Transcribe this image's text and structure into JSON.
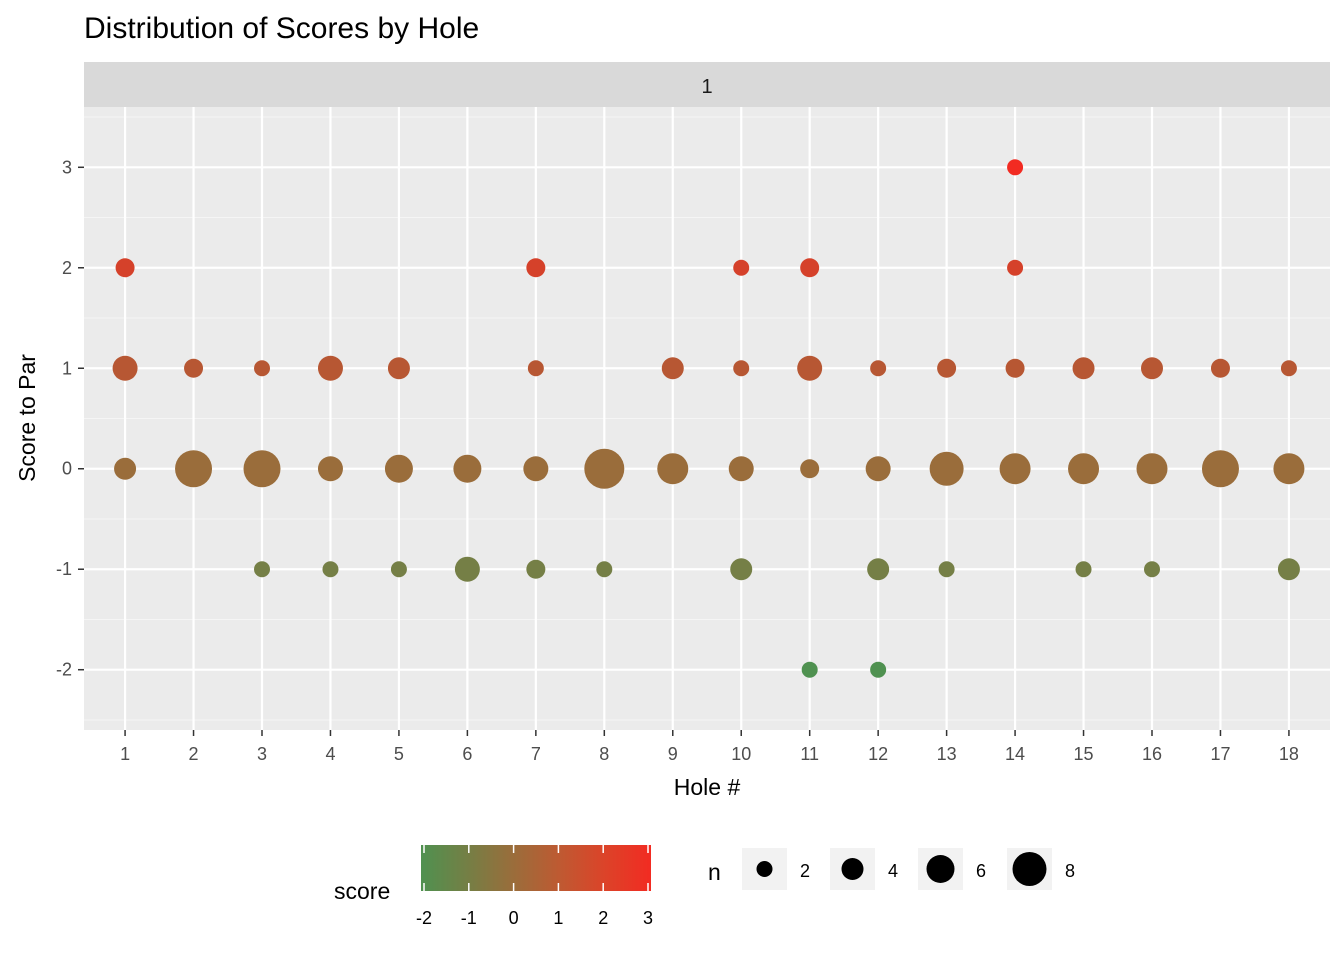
{
  "chart_data": {
    "type": "scatter",
    "title": "Distribution of Scores by Hole",
    "facet_label": "1",
    "xlabel": "Hole #",
    "ylabel": "Score to Par",
    "x_ticks": [
      1,
      2,
      3,
      4,
      5,
      6,
      7,
      8,
      9,
      10,
      11,
      12,
      13,
      14,
      15,
      16,
      17,
      18
    ],
    "y_ticks": [
      3,
      2,
      1,
      0,
      -1,
      -2
    ],
    "xlim": [
      0.4,
      18.6
    ],
    "ylim": [
      -2.6,
      3.6
    ],
    "grid": true,
    "size_variable": "n",
    "color_variable": "score",
    "color_scale": {
      "low": "#4f9150",
      "mid": "#9a6d3b",
      "high": "#f22b22",
      "min": -2,
      "max": 3
    },
    "points": [
      {
        "hole": 1,
        "score": 2,
        "n": 3
      },
      {
        "hole": 1,
        "score": 1,
        "n": 5
      },
      {
        "hole": 1,
        "score": 0,
        "n": 4
      },
      {
        "hole": 2,
        "score": 1,
        "n": 3
      },
      {
        "hole": 2,
        "score": 0,
        "n": 9
      },
      {
        "hole": 3,
        "score": 1,
        "n": 2
      },
      {
        "hole": 3,
        "score": 0,
        "n": 9
      },
      {
        "hole": 3,
        "score": -1,
        "n": 2
      },
      {
        "hole": 4,
        "score": 1,
        "n": 5
      },
      {
        "hole": 4,
        "score": 0,
        "n": 5
      },
      {
        "hole": 4,
        "score": -1,
        "n": 2
      },
      {
        "hole": 5,
        "score": 1,
        "n": 4
      },
      {
        "hole": 5,
        "score": 0,
        "n": 6
      },
      {
        "hole": 5,
        "score": -1,
        "n": 2
      },
      {
        "hole": 6,
        "score": 0,
        "n": 6
      },
      {
        "hole": 6,
        "score": -1,
        "n": 5
      },
      {
        "hole": 7,
        "score": 2,
        "n": 3
      },
      {
        "hole": 7,
        "score": 1,
        "n": 2
      },
      {
        "hole": 7,
        "score": 0,
        "n": 5
      },
      {
        "hole": 7,
        "score": -1,
        "n": 3
      },
      {
        "hole": 8,
        "score": 0,
        "n": 10
      },
      {
        "hole": 8,
        "score": -1,
        "n": 2
      },
      {
        "hole": 9,
        "score": 1,
        "n": 4
      },
      {
        "hole": 9,
        "score": 0,
        "n": 7
      },
      {
        "hole": 10,
        "score": 2,
        "n": 2
      },
      {
        "hole": 10,
        "score": 1,
        "n": 2
      },
      {
        "hole": 10,
        "score": 0,
        "n": 5
      },
      {
        "hole": 10,
        "score": -1,
        "n": 4
      },
      {
        "hole": 11,
        "score": 2,
        "n": 3
      },
      {
        "hole": 11,
        "score": 1,
        "n": 5
      },
      {
        "hole": 11,
        "score": 0,
        "n": 3
      },
      {
        "hole": 11,
        "score": -2,
        "n": 2
      },
      {
        "hole": 12,
        "score": 1,
        "n": 2
      },
      {
        "hole": 12,
        "score": 0,
        "n": 5
      },
      {
        "hole": 12,
        "score": -1,
        "n": 4
      },
      {
        "hole": 12,
        "score": -2,
        "n": 2
      },
      {
        "hole": 13,
        "score": 1,
        "n": 3
      },
      {
        "hole": 13,
        "score": 0,
        "n": 8
      },
      {
        "hole": 13,
        "score": -1,
        "n": 2
      },
      {
        "hole": 14,
        "score": 3,
        "n": 2
      },
      {
        "hole": 14,
        "score": 2,
        "n": 2
      },
      {
        "hole": 14,
        "score": 1,
        "n": 3
      },
      {
        "hole": 14,
        "score": 0,
        "n": 7
      },
      {
        "hole": 15,
        "score": 1,
        "n": 4
      },
      {
        "hole": 15,
        "score": 0,
        "n": 7
      },
      {
        "hole": 15,
        "score": -1,
        "n": 2
      },
      {
        "hole": 16,
        "score": 1,
        "n": 4
      },
      {
        "hole": 16,
        "score": 0,
        "n": 7
      },
      {
        "hole": 16,
        "score": -1,
        "n": 2
      },
      {
        "hole": 17,
        "score": 1,
        "n": 3
      },
      {
        "hole": 17,
        "score": 0,
        "n": 9
      },
      {
        "hole": 18,
        "score": 1,
        "n": 2
      },
      {
        "hole": 18,
        "score": 0,
        "n": 7
      },
      {
        "hole": 18,
        "score": -1,
        "n": 4
      }
    ],
    "legend": {
      "placement": "bottom",
      "color_title": "score",
      "color_breaks": [
        "-2",
        "-1",
        "0",
        "1",
        "2",
        "3"
      ],
      "size_title": "n",
      "size_breaks": [
        {
          "label": "2",
          "n": 2
        },
        {
          "label": "4",
          "n": 4
        },
        {
          "label": "6",
          "n": 6
        },
        {
          "label": "8",
          "n": 8
        }
      ]
    }
  }
}
